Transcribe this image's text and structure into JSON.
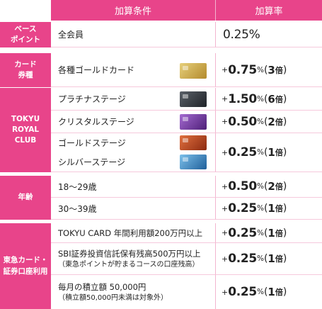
{
  "header": {
    "condition": "加算条件",
    "rate": "加算率"
  },
  "sections": {
    "base": "ベース\nポイント",
    "card_type": "カード\n券種",
    "tokyu_royal_club": "TOKYU\nROYAL\nCLUB",
    "age": "年齢",
    "tokyu_card_securities": "東急カード・\n証券口座利用"
  },
  "rows": {
    "all_members": {
      "condition": "全会員",
      "rate": "0.25%"
    },
    "gold_cards": {
      "condition": "各種ゴールドカード",
      "plus": "+",
      "num": "0.75",
      "pct": "%",
      "mult": "3",
      "bai": "倍"
    },
    "platinum": {
      "condition": "プラチナステージ",
      "plus": "+",
      "num": "1.50",
      "pct": "%",
      "mult": "6",
      "bai": "倍"
    },
    "crystal": {
      "condition": "クリスタルステージ",
      "plus": "+",
      "num": "0.50",
      "pct": "%",
      "mult": "2",
      "bai": "倍"
    },
    "gold_stage": {
      "condition": "ゴールドステージ"
    },
    "silver_stage": {
      "condition": "シルバーステージ"
    },
    "gold_silver_rate": {
      "plus": "+",
      "num": "0.25",
      "pct": "%",
      "mult": "1",
      "bai": "倍"
    },
    "age_18_29": {
      "condition": "18〜29歳",
      "plus": "+",
      "num": "0.50",
      "pct": "%",
      "mult": "2",
      "bai": "倍"
    },
    "age_30_39": {
      "condition": "30〜39歳",
      "plus": "+",
      "num": "0.25",
      "pct": "%",
      "mult": "1",
      "bai": "倍"
    },
    "tokyu_card_usage": {
      "condition": "TOKYU CARD 年間利用額200万円以上",
      "plus": "+",
      "num": "0.25",
      "pct": "%",
      "mult": "1",
      "bai": "倍"
    },
    "sbi_trust": {
      "condition": "SBI証券投資信託保有残高500万円以上",
      "note": "（東急ポイントが貯まるコースの口座残高）",
      "plus": "+",
      "num": "0.25",
      "pct": "%",
      "mult": "1",
      "bai": "倍"
    },
    "monthly_savings": {
      "condition": "毎月の積立額 50,000円",
      "note": "（積立額50,000円未満は対象外）",
      "plus": "+",
      "num": "0.25",
      "pct": "%",
      "mult": "1",
      "bai": "倍"
    }
  },
  "card_icons": {
    "gold_card": "#c9a64a",
    "platinum_card": "#3a3f45",
    "crystal_card": "#7b3fa6",
    "gold_stage_card": "#c2471f",
    "silver_stage_card": "#3f8fc9"
  },
  "colors": {
    "accent": "#e8448a",
    "row_divider": "#f6c9dc"
  }
}
